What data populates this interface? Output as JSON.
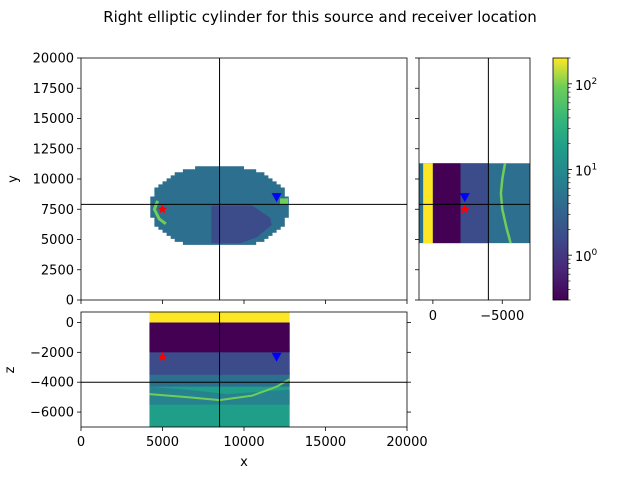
{
  "chart_data": {
    "type": "heatmap",
    "title": "Right elliptic cylinder for this source and receiver location",
    "panels": {
      "xy": {
        "xlabel": "",
        "ylabel": "y",
        "xlim": [
          0,
          20000
        ],
        "ylim": [
          0,
          20000
        ],
        "yticks": [
          0,
          2500,
          5000,
          7500,
          10000,
          12500,
          15000,
          17500,
          20000
        ],
        "ytick_labels": [
          "0",
          "2500",
          "5000",
          "7500",
          "10000",
          "12500",
          "15000",
          "17500",
          "20000"
        ],
        "ellipse": {
          "cx": 8500,
          "cy": 7800,
          "rx": 4300,
          "ry": 3500,
          "y_cut": 4700,
          "y_top": 11300
        },
        "crosshair": {
          "x": 8500,
          "y": 7900
        },
        "source": {
          "x": 5000,
          "y": 7500
        },
        "receiver": {
          "x": 12000,
          "y": 8500
        }
      },
      "yz": {
        "xlim": [
          1000,
          -7000
        ],
        "ylim": [
          0,
          20000
        ],
        "xticks": [
          0,
          -5000
        ],
        "xtick_labels": [
          "0",
          "−5000"
        ],
        "band": {
          "y_min": 4700,
          "y_max": 11300
        },
        "crosshair": {
          "x": -4000,
          "y": 7900
        },
        "source": {
          "x": -2300,
          "y": 7500
        },
        "receiver": {
          "x": -2300,
          "y": 8500
        }
      },
      "xz": {
        "xlabel": "x",
        "ylabel": "z",
        "xlim": [
          0,
          20000
        ],
        "ylim": [
          -7000,
          700
        ],
        "xticks": [
          0,
          5000,
          10000,
          15000,
          20000
        ],
        "xtick_labels": [
          "0",
          "5000",
          "10000",
          "15000",
          "20000"
        ],
        "yticks": [
          0,
          -2000,
          -4000,
          -6000
        ],
        "ytick_labels": [
          "0",
          "−2000",
          "−4000",
          "−6000"
        ],
        "band": {
          "x_min": 4200,
          "x_max": 12800
        },
        "crosshair": {
          "x": 8500,
          "z": -4000
        },
        "source": {
          "x": 5000,
          "z": -2300
        },
        "receiver": {
          "x": 12000,
          "z": -2300
        }
      }
    },
    "colorbar": {
      "scale": "log",
      "range": [
        0.3,
        200
      ],
      "colormap": "viridis",
      "ticks": [
        1,
        10,
        100
      ],
      "tick_labels": [
        "10",
        "10",
        "10"
      ],
      "tick_exponents": [
        "0",
        "1",
        "2"
      ]
    },
    "colors": {
      "source_marker": "#ff0000",
      "receiver_marker": "#0000ff",
      "crosshair": "#000000",
      "air": "#fde725",
      "background": "#2d6f8e"
    }
  }
}
